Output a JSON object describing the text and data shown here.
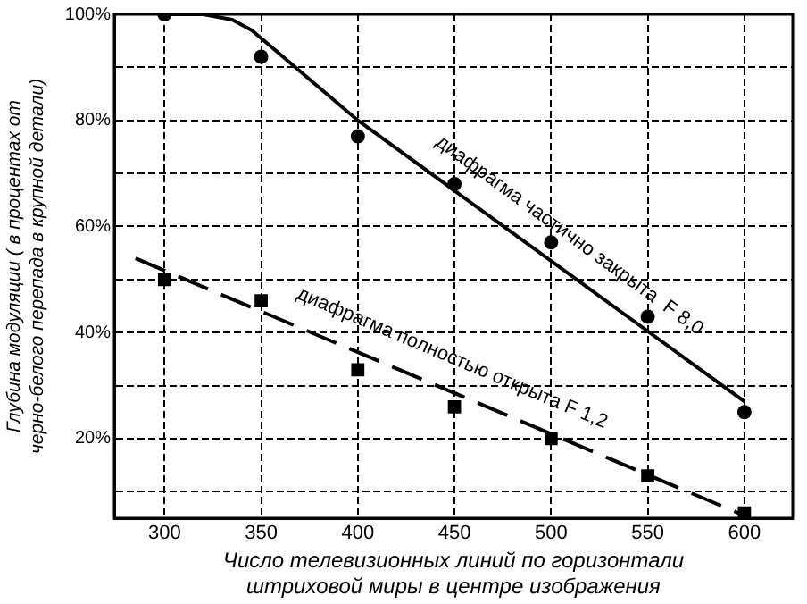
{
  "chart_data": {
    "type": "scatter",
    "xlabel": "Число телевизионных линий по горизонтали штриховой миры в центре изображения",
    "ylabel": "Глубина модуляции ( в процентах от черно-белого перепада в крупной детали)",
    "xlim": [
      274,
      625
    ],
    "xticks": [
      300,
      350,
      400,
      450,
      500,
      550,
      600
    ],
    "ylim": [
      5,
      100
    ],
    "yticks": [
      {
        "value": 10,
        "label": null
      },
      {
        "value": 20,
        "label": "20%"
      },
      {
        "value": 30,
        "label": null
      },
      {
        "value": 40,
        "label": "40%"
      },
      {
        "value": 50,
        "label": null
      },
      {
        "value": 60,
        "label": "60%"
      },
      {
        "value": 70,
        "label": null
      },
      {
        "value": 80,
        "label": "80%"
      },
      {
        "value": 90,
        "label": null
      },
      {
        "value": 100,
        "label": "100%"
      }
    ],
    "grid": true,
    "series": [
      {
        "color": "#000000",
        "marker": "circle",
        "x": [
          300,
          350,
          400,
          450,
          500,
          550,
          600
        ],
        "values": [
          100,
          92,
          77,
          68,
          57,
          43,
          25
        ]
      },
      {
        "type": "line",
        "color": "#000000",
        "marker": "none",
        "line_style": "solid",
        "x": [
          300,
          320,
          335,
          345,
          350,
          400,
          600
        ],
        "values": [
          100,
          100,
          99,
          97,
          95.5,
          80,
          27
        ]
      },
      {
        "color": "#000000",
        "marker": "square",
        "x": [
          300,
          350,
          400,
          450,
          500,
          550,
          600
        ],
        "values": [
          50,
          46,
          33,
          26,
          20,
          13,
          6
        ]
      },
      {
        "type": "line",
        "color": "#000000",
        "marker": "none",
        "line_style": "dashed",
        "x": [
          285,
          600
        ],
        "values": [
          54,
          5.5
        ]
      }
    ],
    "annotations": [
      "диафрагма частично закрыта  F 8,0",
      "диафрагма полностью открыта F 1,2"
    ]
  }
}
